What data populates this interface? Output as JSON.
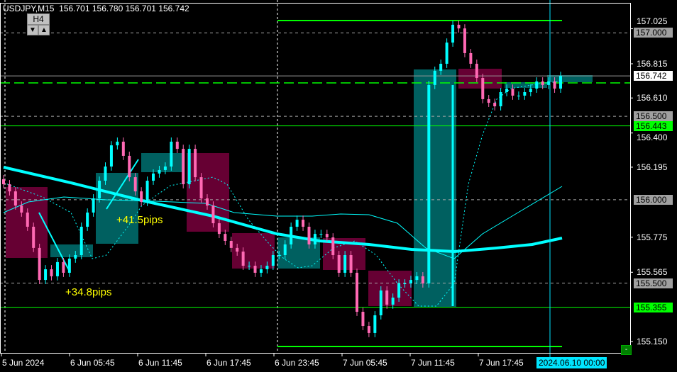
{
  "header": {
    "symbol": "USDJPY,M15",
    "ohlc": "156.701 156.780 156.701 156.742"
  },
  "timeframe_button": {
    "label": "H4",
    "down": "▼",
    "up": "▲"
  },
  "price_labels": [
    {
      "value": "157.000",
      "bg": "#a0a0a0"
    },
    {
      "value": "156.742",
      "bg": "#ffffff"
    },
    {
      "value": "156.500",
      "bg": "#a0a0a0"
    },
    {
      "value": "156.443",
      "bg": "#00ff00"
    },
    {
      "value": "156.000",
      "bg": "#a0a0a0"
    },
    {
      "value": "155.500",
      "bg": "#a0a0a0"
    },
    {
      "value": "155.355",
      "bg": "#00ff00"
    }
  ],
  "annotations": {
    "pips1": "+41.5pips",
    "pips2": "+34.8pips"
  },
  "crosshair_label": "2024.06.10 00:00",
  "minus_button": "-",
  "colors": {
    "up": "#00ffff",
    "down": "#ff69b4",
    "bull_zone": "#006060",
    "bear_zone": "#660033",
    "level": "#00ff00",
    "background": "#000000"
  },
  "chart_data": {
    "type": "candlestick",
    "symbol": "USDJPY",
    "timeframe": "M15",
    "y_ticks": [
      "157.025",
      "156.815",
      "156.610",
      "156.400",
      "156.195",
      "155.775",
      "155.565",
      "155.150"
    ],
    "x_ticks": [
      "5 Jun 2024",
      "6 Jun 05:45",
      "6 Jun 11:45",
      "6 Jun 17:45",
      "6 Jun 23:45",
      "7 Jun 05:45",
      "7 Jun 11:45",
      "7 Jun 17:45"
    ],
    "ylim": [
      155.08,
      157.12
    ],
    "closes": [
      156.093,
      156.05,
      155.965,
      155.923,
      155.838,
      155.711,
      155.519,
      155.583,
      155.541,
      155.626,
      155.562,
      155.647,
      155.668,
      155.838,
      155.923,
      156.008,
      156.114,
      156.199,
      156.326,
      156.348,
      156.263,
      156.135,
      156.05,
      155.987,
      156.114,
      156.157,
      156.178,
      156.199,
      156.348,
      156.305,
      156.093,
      156.305,
      156.135,
      156.008,
      155.965,
      155.859,
      155.795,
      155.753,
      155.711,
      155.689,
      155.604,
      155.604,
      155.562,
      155.583,
      155.604,
      155.668,
      155.668,
      155.732,
      155.838,
      155.88,
      155.838,
      155.732,
      155.795,
      155.795,
      155.774,
      155.668,
      155.562,
      155.668,
      155.562,
      155.328,
      155.243,
      155.201,
      155.307,
      155.456,
      155.371,
      155.413,
      155.498,
      155.498,
      155.519,
      155.541,
      155.498,
      156.688,
      156.773,
      156.815,
      156.942,
      157.049,
      157.027,
      156.879,
      156.815,
      156.73,
      156.603,
      156.581,
      156.56,
      156.645,
      156.666,
      156.624,
      156.624,
      156.645,
      156.666,
      156.709,
      156.688,
      156.709,
      156.666,
      156.742
    ],
    "levels": [
      {
        "price": 157.0,
        "style": "gray-dashed"
      },
      {
        "price": 156.5,
        "style": "gray-dashed"
      },
      {
        "price": 156.0,
        "style": "gray-dashed"
      },
      {
        "price": 155.5,
        "style": "gray-dashed"
      },
      {
        "price": 156.742,
        "style": "bid"
      },
      {
        "price": 156.443,
        "style": "green"
      },
      {
        "price": 155.355,
        "style": "green"
      }
    ]
  }
}
